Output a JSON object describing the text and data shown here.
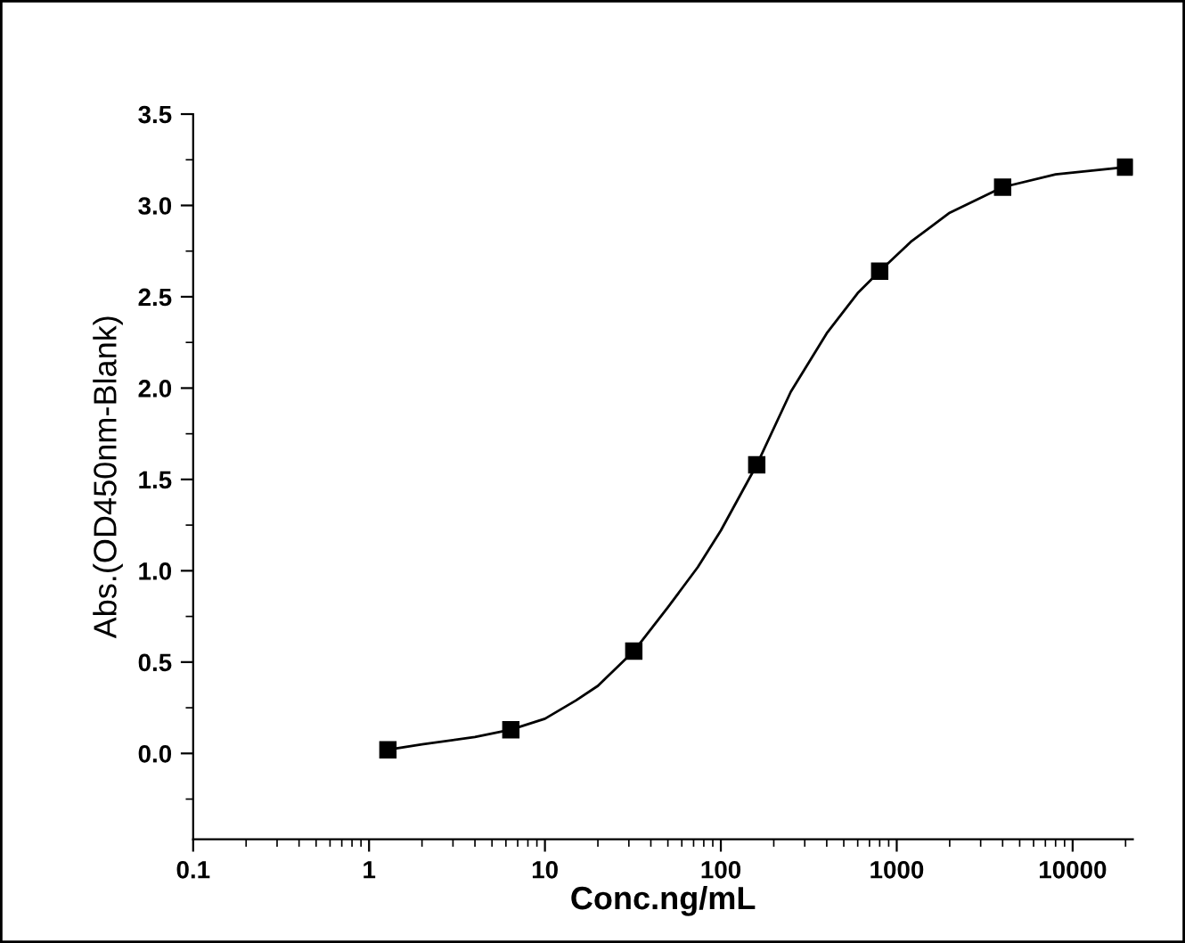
{
  "chart_data": {
    "type": "scatter",
    "xlabel": "Conc.ng/mL",
    "ylabel": "Abs.(OD450nm-Blank)",
    "x": [
      1.28,
      6.4,
      32,
      160,
      800,
      4000,
      20000
    ],
    "series": [
      {
        "color": "#000000",
        "marker": "square",
        "values": [
          0.02,
          0.13,
          0.56,
          1.58,
          2.64,
          3.1,
          3.21
        ]
      },
      {
        "type": "line",
        "color": "#000000",
        "marker": "none",
        "line_style": "solid",
        "x": [
          1.28,
          2,
          4,
          6.4,
          10,
          15,
          20,
          32,
          50,
          74,
          100,
          160,
          250,
          400,
          600,
          800,
          1200,
          2000,
          4000,
          8000,
          20000
        ],
        "values": [
          0.02,
          0.05,
          0.09,
          0.13,
          0.19,
          0.29,
          0.37,
          0.56,
          0.8,
          1.02,
          1.22,
          1.58,
          1.98,
          2.3,
          2.52,
          2.64,
          2.8,
          2.96,
          3.1,
          3.17,
          3.21
        ]
      }
    ],
    "log": "x",
    "grid": false,
    "xlim": [
      0.1,
      22000
    ],
    "xticks": [
      0.1,
      1,
      10,
      100,
      1000,
      10000
    ],
    "ylim": [
      -0.47,
      3.5
    ],
    "yticks": [
      {
        "value": 0.0,
        "label": "0.0"
      },
      0.5,
      {
        "value": 1.0,
        "label": "1.0"
      },
      1.5,
      {
        "value": 2.0,
        "label": "2.0"
      },
      2.5,
      {
        "value": 3.0,
        "label": "3.0"
      },
      3.5
    ]
  }
}
